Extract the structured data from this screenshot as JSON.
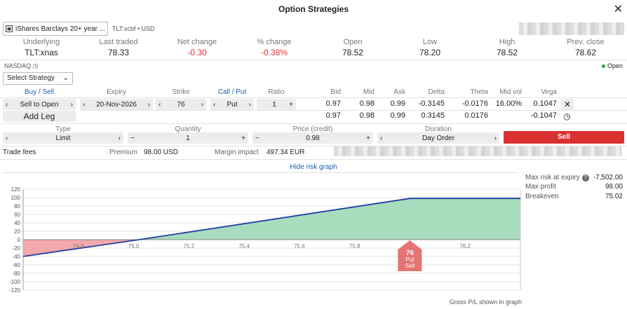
{
  "window": {
    "title": "Option Strategies"
  },
  "instrument": {
    "name": "iShares Barclays 20+ year ...",
    "ticker": "TLT:xcbf",
    "currency": "USD"
  },
  "quote": {
    "headers": [
      "Underlying",
      "Last traded",
      "Net change",
      "% change",
      "Open",
      "Low",
      "High",
      "Prev. close"
    ],
    "values": [
      "TLT:xnas",
      "78.33",
      "-0.30",
      "-0.38%",
      "78.52",
      "78.20",
      "78.52",
      "78.62"
    ]
  },
  "exchange": "NASDAQ",
  "market_status": "Open",
  "strategy": {
    "select_label": "Select Strategy"
  },
  "leg_headers": {
    "buy_sell": "Buy / Sell",
    "expiry": "Expiry",
    "strike": "Strike",
    "call_put": "Call / Put",
    "ratio": "Ratio",
    "bid": "Bid",
    "mid": "Mid",
    "ask": "Ask",
    "delta": "Delta",
    "theta": "Theta",
    "mid_vol": "Mid vol",
    "vega": "Vega"
  },
  "leg": {
    "buy_sell": "Sell to Open",
    "expiry": "20-Nov-2026",
    "strike": "76",
    "call_put": "Put",
    "ratio": "1",
    "bid": "0.97",
    "mid": "0.98",
    "ask": "0.99",
    "delta": "-0.3145",
    "theta": "-0.0176",
    "mid_vol": "16.00%",
    "vega": "0.1047"
  },
  "totals": {
    "bid": "0.97",
    "mid": "0.98",
    "ask": "0.99",
    "delta": "0.3145",
    "theta": "0.0176",
    "vega": "-0.1047"
  },
  "add_leg_label": "Add Leg",
  "order": {
    "type_label": "Type",
    "type": "Limit",
    "quantity_label": "Quantity",
    "quantity": "1",
    "price_label": "Price (credit)",
    "price": "0.98",
    "duration_label": "Duration",
    "duration": "Day Order",
    "button": "Sell"
  },
  "fees": {
    "trade_fees": "Trade fees",
    "premium_label": "Premium",
    "premium": "98.00 USD",
    "margin_label": "Margin impact",
    "margin": "497.34 EUR"
  },
  "risk": {
    "hide_label": "Hide risk graph",
    "max_risk_label": "Max risk at expiry",
    "max_risk": "-7,502.00",
    "max_profit_label": "Max profit",
    "max_profit": "98.00",
    "breakeven_label": "Breakeven",
    "breakeven": "75.02",
    "footer": "Gross P/L shown in graph"
  },
  "chart_data": {
    "type": "area",
    "x": [
      74.6,
      75.02,
      76.0,
      76.4
    ],
    "y": [
      -40,
      0,
      98,
      98
    ],
    "xticks": [
      "74.8",
      "75.0",
      "75.2",
      "75.4",
      "75.6",
      "75.8",
      "76.2"
    ],
    "xtick_values": [
      74.8,
      75.0,
      75.2,
      75.4,
      75.6,
      75.8,
      76.2
    ],
    "yticks": [
      120,
      100,
      80,
      60,
      40,
      20,
      0,
      -20,
      -40,
      -60,
      -80,
      -100,
      -120
    ],
    "xlim": [
      74.6,
      76.4
    ],
    "ylim": [
      -120,
      120
    ],
    "marker": {
      "strike": 76.0,
      "lines": [
        "76",
        "Put",
        "Sell"
      ]
    },
    "colors": {
      "profit": "#a8dcbc",
      "loss": "#f2a9ab",
      "line": "#1f3fa6",
      "marker": "#e57373"
    }
  }
}
